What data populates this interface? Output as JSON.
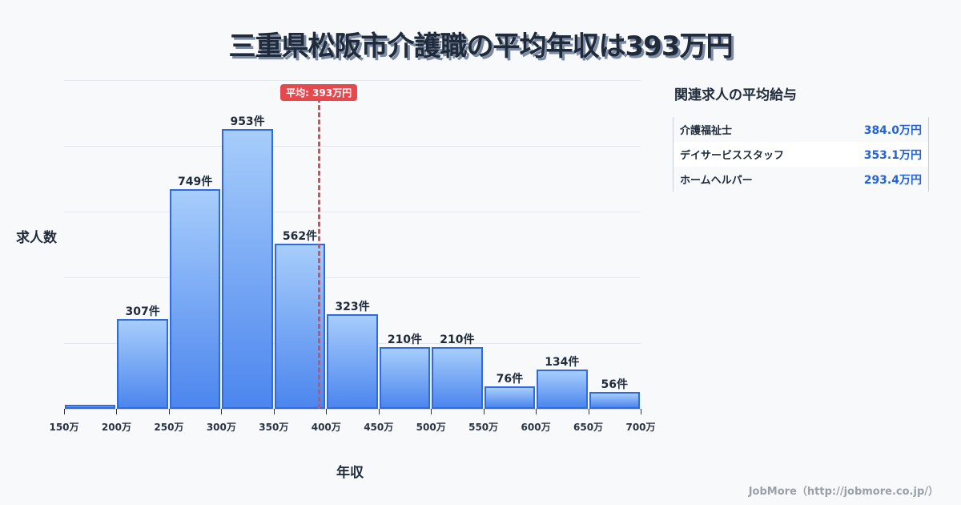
{
  "title": "三重県松阪市介護職の平均年収は393万円",
  "chart_data": {
    "type": "bar",
    "title": "三重県松阪市介護職の平均年収は393万円",
    "xlabel": "年収",
    "ylabel": "求人数",
    "categories": [
      "150-200万",
      "200-250万",
      "250-300万",
      "300-350万",
      "350-400万",
      "400-450万",
      "450-500万",
      "500-550万",
      "550-600万",
      "600-650万",
      "650-700万"
    ],
    "bin_edges": [
      "150万",
      "200万",
      "250万",
      "300万",
      "350万",
      "400万",
      "450万",
      "500万",
      "550万",
      "600万",
      "650万",
      "700万"
    ],
    "values": [
      14,
      307,
      749,
      953,
      562,
      323,
      210,
      210,
      76,
      134,
      56
    ],
    "labels": [
      "",
      "307件",
      "749件",
      "953件",
      "562件",
      "323件",
      "210件",
      "210件",
      "76件",
      "134件",
      "56件"
    ],
    "ylim": [
      0,
      1120
    ],
    "grid": true,
    "annotation": {
      "label": "平均: 393万円",
      "x": 393,
      "color": "#e5484d"
    },
    "bar_color": "#4c86ee",
    "bar_border": "#2f6ae0"
  },
  "side_panel": {
    "title": "関連求人の平均給与",
    "rows": [
      {
        "name": "介護福祉士",
        "value": "384.0万円"
      },
      {
        "name": "デイサービススタッフ",
        "value": "353.1万円"
      },
      {
        "name": "ホームヘルパー",
        "value": "293.4万円"
      }
    ]
  },
  "footer": "JobMore（http://jobmore.co.jp/）"
}
